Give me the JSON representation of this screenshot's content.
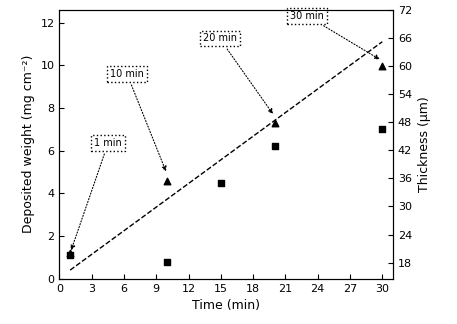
{
  "chart_data": {
    "type": "scatter",
    "x_label": "Time (min)",
    "y_label": "Deposited weight (mg cm⁻²)",
    "y2_label": "Thickness (μm)",
    "xlim": [
      0,
      31
    ],
    "xticks": [
      0,
      3,
      6,
      9,
      12,
      15,
      18,
      21,
      24,
      27,
      30
    ],
    "ylim": [
      0,
      12.6
    ],
    "yticks": [
      0,
      2,
      4,
      6,
      8,
      10,
      12
    ],
    "y2lim": [
      14.6,
      72
    ],
    "y2ticks": [
      18,
      24,
      30,
      36,
      42,
      48,
      54,
      60,
      66,
      72
    ],
    "series": [
      {
        "type": "scatter",
        "marker": "square",
        "color": "#000000",
        "x": [
          1,
          10,
          15,
          20,
          30
        ],
        "values": [
          1.1,
          0.8,
          4.5,
          6.2,
          7.0
        ]
      },
      {
        "type": "scatter",
        "marker": "triangle",
        "color": "#000000",
        "axis": "y2",
        "x": [
          1,
          10,
          20,
          30
        ],
        "values": [
          20,
          35.5,
          47.9,
          60
        ]
      },
      {
        "type": "line",
        "line_style": "dashed",
        "color": "#000000",
        "x": [
          1,
          30
        ],
        "values": [
          0.4,
          11.1
        ]
      }
    ],
    "annotations": [
      {
        "text": "1 min",
        "x": 1,
        "y": 1.2
      },
      {
        "text": "10 min",
        "x": 10,
        "y": 4.9
      },
      {
        "text": "20 min",
        "x": 20,
        "y": 7.6
      },
      {
        "text": "30 min",
        "x": 30,
        "y": 10.2
      }
    ]
  }
}
